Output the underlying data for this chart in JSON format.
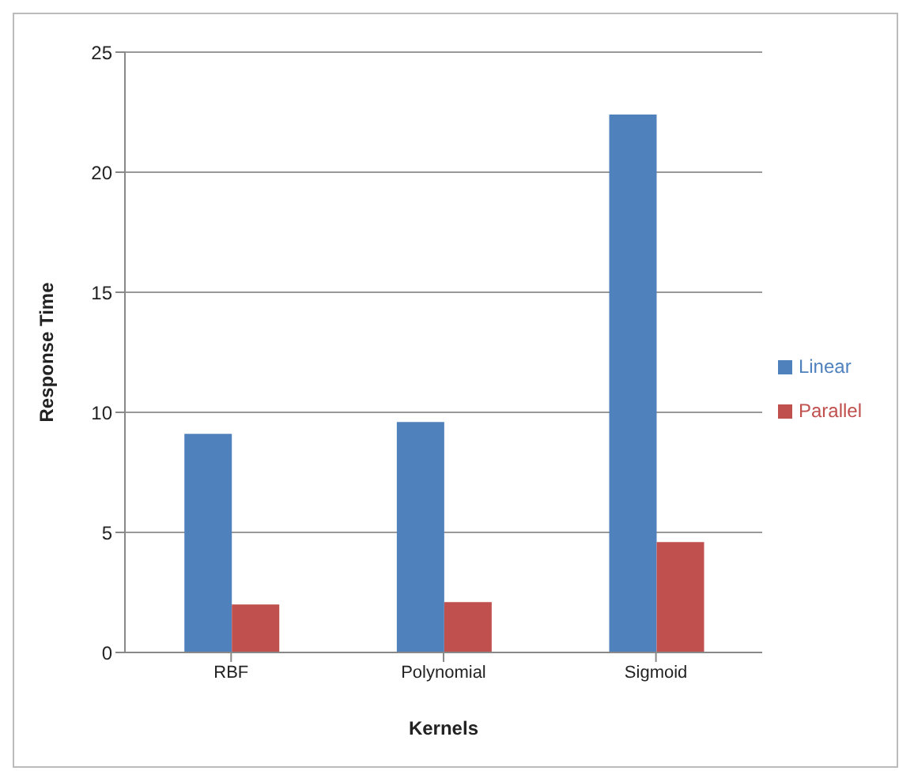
{
  "chart_data": {
    "type": "bar",
    "xlabel": "Kernels",
    "ylabel": "Response Time",
    "categories": [
      "RBF",
      "Polynomial",
      "Sigmoid"
    ],
    "series": [
      {
        "name": "Linear",
        "color": "#4f81bd",
        "values": [
          9.1,
          9.6,
          22.4
        ]
      },
      {
        "name": "Parallel",
        "color": "#c0504d",
        "values": [
          2.0,
          2.1,
          4.6
        ]
      }
    ],
    "ylim": [
      0,
      25
    ],
    "yticks": [
      0,
      5,
      10,
      15,
      20,
      25
    ],
    "grid": "y",
    "legend": "right"
  }
}
